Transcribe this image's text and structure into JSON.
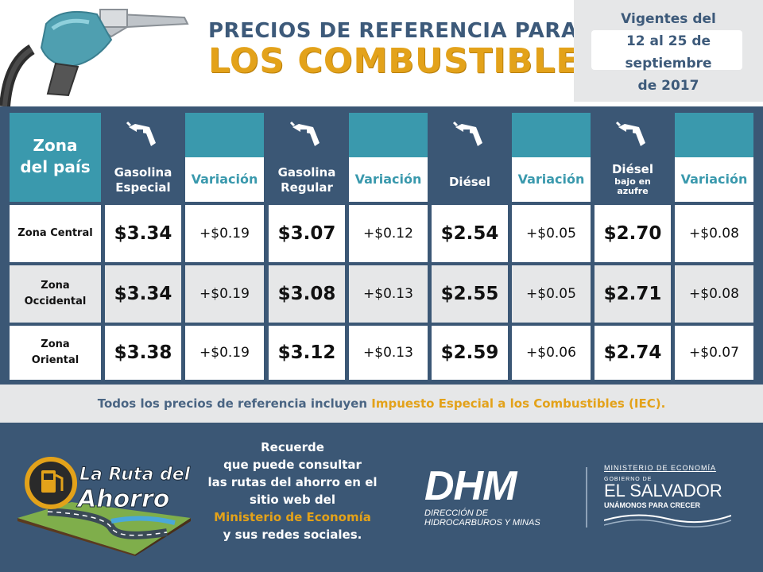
{
  "header": {
    "title_line1": "PRECIOS DE REFERENCIA PARA",
    "title_line2": "LOS COMBUSTIBLES",
    "validity": {
      "line1": "Vigentes del",
      "line2": "12 al 25 de",
      "line3": "septiembre",
      "line4": "de 2017"
    }
  },
  "table": {
    "zone_header_line1": "Zona",
    "zone_header_line2": "del país",
    "variation_label": "Variación",
    "products": [
      {
        "name_line1": "Gasolina",
        "name_line2": "Especial",
        "sub": ""
      },
      {
        "name_line1": "Gasolina",
        "name_line2": "Regular",
        "sub": ""
      },
      {
        "name_line1": "Diésel",
        "name_line2": "",
        "sub": ""
      },
      {
        "name_line1": "Diésel",
        "name_line2": "",
        "sub_line1": "bajo en",
        "sub_line2": "azufre"
      }
    ],
    "rows": [
      {
        "zone_line1": "Zona Central",
        "zone_line2": "",
        "prices": [
          "$3.34",
          "$3.07",
          "$2.54",
          "$2.70"
        ],
        "variations": [
          "+$0.19",
          "+$0.12",
          "+$0.05",
          "+$0.08"
        ]
      },
      {
        "zone_line1": "Zona",
        "zone_line2": "Occidental",
        "prices": [
          "$3.34",
          "$3.08",
          "$2.55",
          "$2.71"
        ],
        "variations": [
          "+$0.19",
          "+$0.13",
          "+$0.05",
          "+$0.08"
        ]
      },
      {
        "zone_line1": "Zona",
        "zone_line2": "Oriental",
        "prices": [
          "$3.38",
          "$3.12",
          "$2.59",
          "$2.74"
        ],
        "variations": [
          "+$0.19",
          "+$0.13",
          "+$0.06",
          "+$0.07"
        ]
      }
    ]
  },
  "note": {
    "text": "Todos los precios de referencia incluyen ",
    "highlight": "Impuesto Especial a los Combustibles (IEC)",
    "end": "."
  },
  "footer": {
    "ruta": {
      "line1": "La Ruta del",
      "line2": "Ahorro"
    },
    "message": {
      "line1": "Recuerde",
      "line2": "que puede consultar",
      "line3": "las rutas del ahorro en el",
      "line4": "sitio web del",
      "line5_highlight": "Ministerio de Economía",
      "line6": "y sus redes sociales."
    },
    "dhm": {
      "big": "DHM",
      "line1": "DIRECCIÓN DE",
      "line2": "HIDROCARBUROS Y MINAS"
    },
    "gov": {
      "ministry": "MINISTERIO DE ECONOMÍA",
      "gobierno": "GOBIERNO DE",
      "country": "EL SALVADOR",
      "slogan": "UNÁMONOS PARA CRECER"
    }
  },
  "icons": [
    "fuel-pump-nozzle-icon",
    "nozzle-icon",
    "fuel-pump-icon"
  ],
  "colors": {
    "navy": "#3b5775",
    "teal": "#3a99ad",
    "gold": "#e3a21a",
    "light_gray": "#e6e7e8"
  }
}
